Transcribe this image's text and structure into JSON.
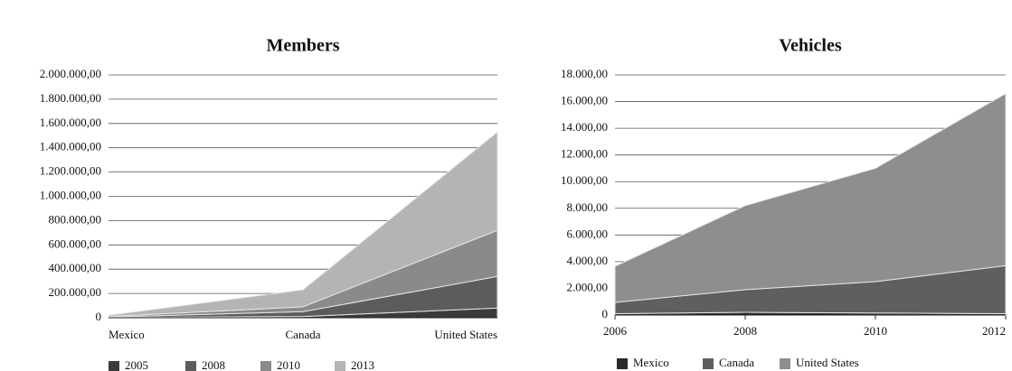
{
  "chart_data": [
    {
      "type": "stacked-area",
      "title": "Members",
      "categories": [
        "Mexico",
        "Canada",
        "United States"
      ],
      "series": [
        {
          "name": "2005",
          "color": "#3a3a3a",
          "values": [
            2000,
            10000,
            80000
          ]
        },
        {
          "name": "2008",
          "color": "#5c5c5c",
          "values": [
            3000,
            40000,
            260000
          ]
        },
        {
          "name": "2010",
          "color": "#8a8a8c",
          "values": [
            5000,
            40000,
            380000
          ]
        },
        {
          "name": "2013",
          "color": "#b4b4b7",
          "values": [
            10000,
            140000,
            810000
          ]
        }
      ],
      "ylim": [
        0,
        2000000
      ],
      "yticks": [
        0,
        {
          "value": 200000,
          "label": "200.000,00"
        },
        {
          "value": 400000,
          "label": "400.000,00"
        },
        {
          "value": 600000,
          "label": "600.000,00"
        },
        {
          "value": 800000,
          "label": "800.000,00"
        },
        {
          "value": 1000000,
          "label": "1.000.000,00"
        },
        {
          "value": 1200000,
          "label": "1.200.000,00"
        },
        {
          "value": 1400000,
          "label": "1.400.000,00"
        },
        {
          "value": 1600000,
          "label": "1.600.000,00"
        },
        {
          "value": 1800000,
          "label": "1.800.000,00"
        },
        {
          "value": 2000000,
          "label": "2.000.000,00"
        }
      ],
      "grid": true
    },
    {
      "type": "stacked-area",
      "title": "Vehicles",
      "x": [
        2006,
        2008,
        2010,
        2012
      ],
      "xlim": [
        2006,
        2012
      ],
      "xticks": [
        2006,
        2008,
        2010,
        2012
      ],
      "series": [
        {
          "name": "Mexico",
          "color": "#2a2a2a",
          "values": [
            100,
            200,
            150,
            100
          ]
        },
        {
          "name": "Canada",
          "color": "#5f5f5f",
          "values": [
            850,
            1700,
            2350,
            3600
          ]
        },
        {
          "name": "United States",
          "color": "#8e8e90",
          "values": [
            2700,
            6300,
            8500,
            12900
          ]
        }
      ],
      "ylim": [
        0,
        18000
      ],
      "yticks": [
        0,
        {
          "value": 2000,
          "label": "2.000,00"
        },
        {
          "value": 4000,
          "label": "4.000,00"
        },
        {
          "value": 6000,
          "label": "6.000,00"
        },
        {
          "value": 8000,
          "label": "8.000,00"
        },
        {
          "value": 10000,
          "label": "10.000,00"
        },
        {
          "value": 12000,
          "label": "12.000,00"
        },
        {
          "value": 14000,
          "label": "14.000,00"
        },
        {
          "value": 16000,
          "label": "16.000,00"
        },
        {
          "value": 18000,
          "label": "18.000,00"
        }
      ],
      "grid": true
    }
  ]
}
